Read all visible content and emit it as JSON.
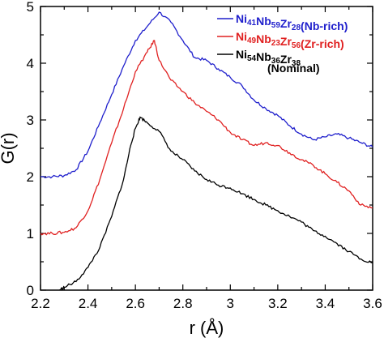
{
  "chart_data": {
    "type": "line",
    "xlabel": "r (Å)",
    "ylabel": "G(r)",
    "xlim": [
      2.2,
      3.6
    ],
    "ylim": [
      0,
      5
    ],
    "xticks": [
      "2.2",
      "2.4",
      "2.6",
      "2.8",
      "3",
      "3.2",
      "3.4",
      "3.6"
    ],
    "yticks": [
      "0",
      "1",
      "2",
      "3",
      "4",
      "5"
    ],
    "grid": false,
    "legend_position": "top-right",
    "series": [
      {
        "color": "#1f1fcc",
        "legend": [
          {
            "t": "Ni",
            "sub": false
          },
          {
            "t": "41",
            "sub": true
          },
          {
            "t": "Nb",
            "sub": false
          },
          {
            "t": "59",
            "sub": true
          },
          {
            "t": "Zr",
            "sub": false
          },
          {
            "t": "28",
            "sub": true
          },
          {
            "t": "(Nb-rich)",
            "sub": false
          }
        ],
        "x": [
          2.2,
          2.25,
          2.3,
          2.35,
          2.4,
          2.45,
          2.5,
          2.55,
          2.6,
          2.65,
          2.7,
          2.75,
          2.8,
          2.85,
          2.9,
          2.95,
          3.0,
          3.05,
          3.1,
          3.15,
          3.2,
          3.25,
          3.3,
          3.35,
          3.4,
          3.45,
          3.5,
          3.55,
          3.6
        ],
        "y": [
          2.0,
          2.0,
          2.02,
          2.12,
          2.45,
          2.95,
          3.45,
          3.95,
          4.4,
          4.65,
          4.9,
          4.72,
          4.4,
          4.1,
          4.05,
          3.9,
          3.75,
          3.6,
          3.35,
          3.2,
          3.08,
          2.9,
          2.75,
          2.65,
          2.7,
          2.75,
          2.68,
          2.6,
          2.52
        ]
      },
      {
        "color": "#e02020",
        "legend": [
          {
            "t": "Ni",
            "sub": false
          },
          {
            "t": "49",
            "sub": true
          },
          {
            "t": "Nb",
            "sub": false
          },
          {
            "t": "23",
            "sub": true
          },
          {
            "t": "Zr",
            "sub": false
          },
          {
            "t": "56",
            "sub": true
          },
          {
            "t": "(Zr-rich)",
            "sub": false
          }
        ],
        "x": [
          2.2,
          2.25,
          2.3,
          2.35,
          2.4,
          2.45,
          2.5,
          2.55,
          2.6,
          2.65,
          2.68,
          2.7,
          2.75,
          2.8,
          2.85,
          2.9,
          2.95,
          3.0,
          3.05,
          3.1,
          3.15,
          3.2,
          3.25,
          3.3,
          3.35,
          3.4,
          3.45,
          3.5,
          3.55,
          3.6
        ],
        "y": [
          1.0,
          1.0,
          1.02,
          1.1,
          1.4,
          1.95,
          2.6,
          3.2,
          3.85,
          4.2,
          4.4,
          4.05,
          3.7,
          3.5,
          3.3,
          3.15,
          3.0,
          2.78,
          2.65,
          2.55,
          2.6,
          2.55,
          2.42,
          2.3,
          2.2,
          2.05,
          1.9,
          1.75,
          1.5,
          1.45
        ]
      },
      {
        "color": "#000000",
        "legend": [
          {
            "t": "Ni",
            "sub": false
          },
          {
            "t": "54",
            "sub": true
          },
          {
            "t": "Nb",
            "sub": false
          },
          {
            "t": "36",
            "sub": true
          },
          {
            "t": "Zr",
            "sub": false
          },
          {
            "t": "38",
            "sub": true
          }
        ],
        "legend_line2": "(Nominal)",
        "x": [
          2.28,
          2.3,
          2.35,
          2.4,
          2.45,
          2.5,
          2.55,
          2.58,
          2.6,
          2.62,
          2.65,
          2.7,
          2.75,
          2.8,
          2.85,
          2.9,
          2.95,
          3.0,
          3.05,
          3.1,
          3.15,
          3.2,
          3.25,
          3.3,
          3.35,
          3.4,
          3.45,
          3.5,
          3.55,
          3.6
        ],
        "y": [
          0.0,
          0.05,
          0.15,
          0.4,
          0.75,
          1.3,
          1.95,
          2.55,
          2.85,
          3.05,
          2.95,
          2.8,
          2.45,
          2.3,
          2.1,
          1.95,
          1.85,
          1.8,
          1.7,
          1.6,
          1.5,
          1.4,
          1.3,
          1.2,
          1.05,
          0.95,
          0.82,
          0.68,
          0.55,
          0.48
        ]
      }
    ]
  }
}
